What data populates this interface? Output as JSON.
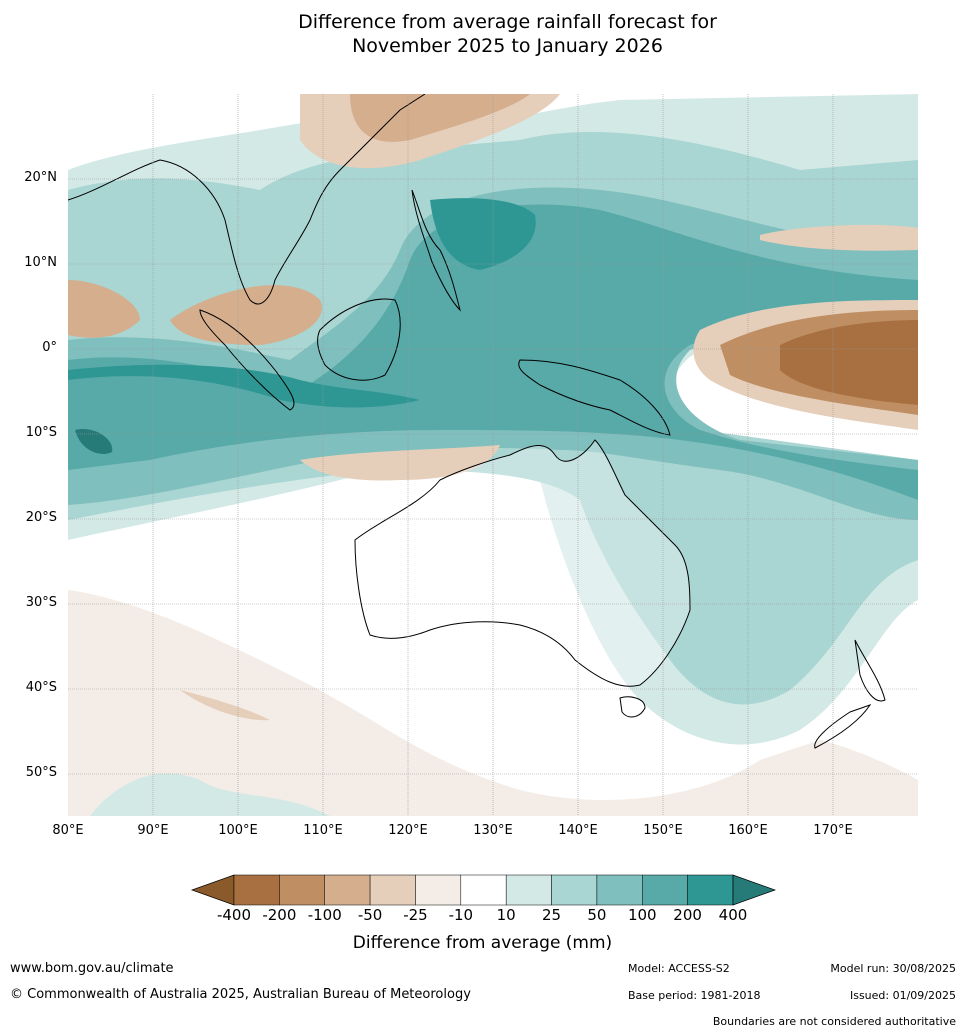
{
  "title_line1": "Difference from average rainfall forecast for",
  "title_line2": "November 2025 to January 2026",
  "lat_ticks": [
    "20°N",
    "10°N",
    "0°",
    "10°S",
    "20°S",
    "30°S",
    "40°S",
    "50°S"
  ],
  "lon_ticks": [
    "80°E",
    "90°E",
    "100°E",
    "110°E",
    "120°E",
    "130°E",
    "140°E",
    "150°E",
    "160°E",
    "170°E"
  ],
  "map_extent": {
    "lon_min": 80,
    "lon_max": 180,
    "lat_min": -55,
    "lat_max": 30
  },
  "colorbar": {
    "labels": [
      "-400",
      "-200",
      "-100",
      "-50",
      "-25",
      "-10",
      "10",
      "25",
      "50",
      "100",
      "200",
      "400"
    ],
    "colors": [
      "#8a5a2b",
      "#a87040",
      "#bf8f63",
      "#d4ae8d",
      "#e5cfbb",
      "#f4ece6",
      "#ffffff",
      "#d3e9e6",
      "#a9d5d2",
      "#7fbfbd",
      "#57aaa8",
      "#2f9793",
      "#267a77"
    ],
    "title": "Difference from average (mm)"
  },
  "footer": {
    "url": "www.bom.gov.au/climate",
    "copyright": "© Commonwealth of Australia 2025, Australian Bureau of Meteorology",
    "model": "Model: ACCESS-S2",
    "base_period": "Base period: 1981-2018",
    "model_run": "Model run: 30/08/2025",
    "issued": "Issued: 01/09/2025",
    "disclaimer": "Boundaries are not considered authoritative"
  }
}
